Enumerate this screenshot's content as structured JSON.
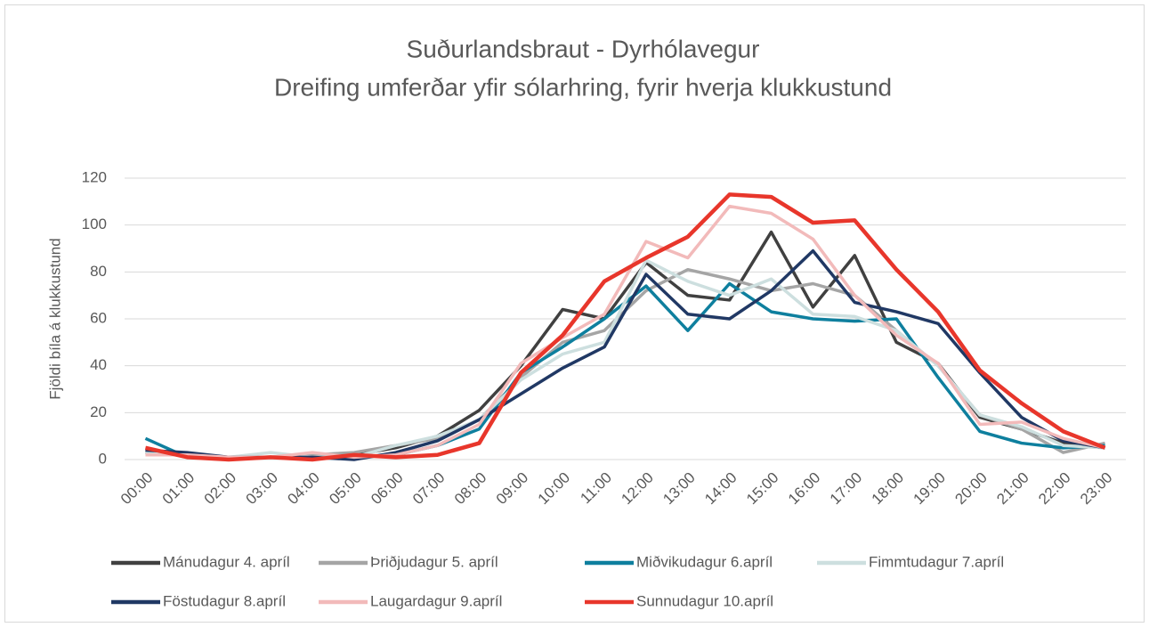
{
  "chart_data": {
    "type": "line",
    "title": "Suðurlandsbraut - Dyrhólavegur",
    "subtitle": "Dreifing umferðar yfir sólarhring, fyrir hverja klukkustund",
    "y_label": "Fjöldi bíla á klukkustund",
    "categories": [
      "00:00",
      "01:00",
      "02:00",
      "03:00",
      "04:00",
      "05:00",
      "06:00",
      "07:00",
      "08:00",
      "09:00",
      "10:00",
      "11:00",
      "12:00",
      "13:00",
      "14:00",
      "15:00",
      "16:00",
      "17:00",
      "18:00",
      "19:00",
      "20:00",
      "21:00",
      "22:00",
      "23:00"
    ],
    "ylim": [
      0,
      120
    ],
    "yticks": [
      0,
      20,
      40,
      60,
      80,
      100,
      120
    ],
    "grid": true,
    "legend": "bottom",
    "series": [
      {
        "name": "Mánudagur 4. apríl",
        "color": "#404040",
        "values": [
          3,
          2,
          1,
          1,
          1,
          2,
          5,
          10,
          21,
          40,
          64,
          60,
          84,
          70,
          68,
          97,
          65,
          87,
          50,
          41,
          18,
          13,
          7,
          5
        ]
      },
      {
        "name": "Þriðjudagur 5. apríl",
        "color": "#a5a5a5",
        "values": [
          4,
          2,
          1,
          1,
          2,
          3,
          6,
          9,
          17,
          35,
          50,
          55,
          72,
          81,
          77,
          72,
          75,
          70,
          55,
          40,
          19,
          13,
          3,
          7
        ]
      },
      {
        "name": "Miðvikudagur 6.apríl",
        "color": "#0e7f9e",
        "values": [
          9,
          1,
          1,
          1,
          1,
          1,
          2,
          6,
          13,
          37,
          48,
          60,
          74,
          55,
          75,
          63,
          60,
          59,
          60,
          35,
          12,
          7,
          5,
          6
        ]
      },
      {
        "name": "Fimmtudagur 7.apríl",
        "color": "#cddfdf",
        "values": [
          3,
          2,
          1,
          3,
          1,
          1,
          6,
          10,
          17,
          34,
          45,
          50,
          85,
          76,
          70,
          77,
          62,
          61,
          55,
          40,
          19,
          14,
          6,
          5
        ]
      },
      {
        "name": "Föstudagur 8.apríl",
        "color": "#203864",
        "values": [
          4,
          3,
          1,
          1,
          1,
          0,
          3,
          8,
          17,
          28,
          39,
          48,
          79,
          62,
          60,
          72,
          89,
          67,
          63,
          58,
          37,
          18,
          8,
          5
        ]
      },
      {
        "name": "Laugardagur 9.apríl",
        "color": "#f2baba",
        "values": [
          2,
          2,
          1,
          1,
          3,
          1,
          2,
          6,
          15,
          41,
          52,
          62,
          93,
          86,
          108,
          105,
          94,
          70,
          53,
          41,
          15,
          16,
          9,
          5
        ]
      },
      {
        "name": "Sunnudagur 10.apríl",
        "color": "#e8362b",
        "values": [
          5,
          1,
          0,
          1,
          0,
          2,
          1,
          2,
          7,
          37,
          53,
          76,
          86,
          95,
          113,
          112,
          101,
          102,
          81,
          63,
          38,
          24,
          12,
          5
        ]
      }
    ]
  }
}
